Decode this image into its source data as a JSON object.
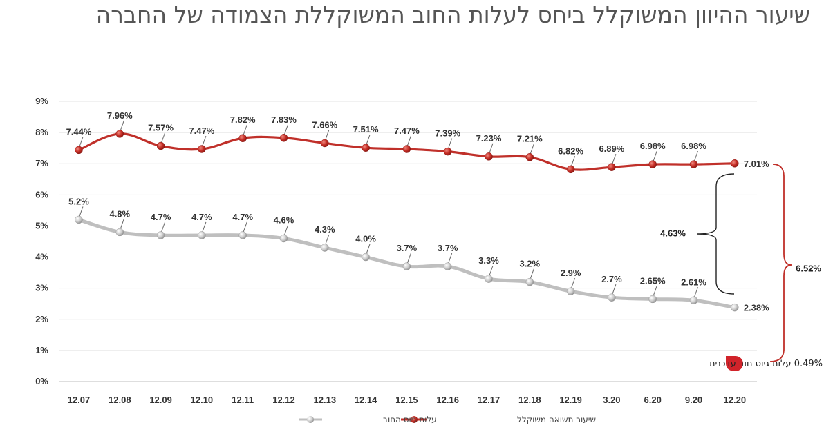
{
  "title": "שיעור ההיוון המשוקלל ביחס לעלות החוב המשוקללת הצמודה של החברה",
  "chart_data": {
    "type": "line",
    "categories": [
      "12.07",
      "12.08",
      "12.09",
      "12.10",
      "12.11",
      "12.12",
      "12.13",
      "12.14",
      "12.15",
      "12.16",
      "12.17",
      "12.18",
      "12.19",
      "3.20",
      "6.20",
      "9.20",
      "12.20"
    ],
    "y_ticks": [
      "0%",
      "1%",
      "2%",
      "3%",
      "4%",
      "5%",
      "6%",
      "7%",
      "8%",
      "9%"
    ],
    "ylim": [
      0,
      9
    ],
    "grid": true,
    "legend_position": "bottom",
    "series": [
      {
        "name": "שיעור תשואה משוקלל",
        "color": "#c0302a",
        "values": [
          7.44,
          7.96,
          7.57,
          7.47,
          7.82,
          7.83,
          7.66,
          7.51,
          7.47,
          7.39,
          7.23,
          7.21,
          6.82,
          6.89,
          6.98,
          6.98,
          7.01
        ],
        "labels": [
          "7.44%",
          "7.96%",
          "7.57%",
          "7.47%",
          "7.82%",
          "7.83%",
          "7.66%",
          "7.51%",
          "7.47%",
          "7.39%",
          "7.23%",
          "7.21%",
          "6.82%",
          "6.89%",
          "6.98%",
          "6.98%",
          "7.01%"
        ]
      },
      {
        "name": "עלות גיוס החוב",
        "color": "#bfbfbf",
        "values": [
          5.2,
          4.8,
          4.7,
          4.7,
          4.7,
          4.6,
          4.3,
          4.0,
          3.7,
          3.7,
          3.3,
          3.2,
          2.9,
          2.7,
          2.65,
          2.61,
          2.38
        ],
        "labels": [
          "5.2%",
          "4.8%",
          "4.7%",
          "4.7%",
          "4.7%",
          "4.6%",
          "4.3%",
          "4.0%",
          "3.7%",
          "3.7%",
          "3.3%",
          "3.2%",
          "2.9%",
          "2.7%",
          "2.65%",
          "2.61%",
          "2.38%"
        ]
      }
    ],
    "annotations": {
      "spread_gap": "4.63%",
      "total_gap": "6.52%",
      "latest_debt_note": "0.49% עלות גיוס חוב עדכנית"
    }
  }
}
